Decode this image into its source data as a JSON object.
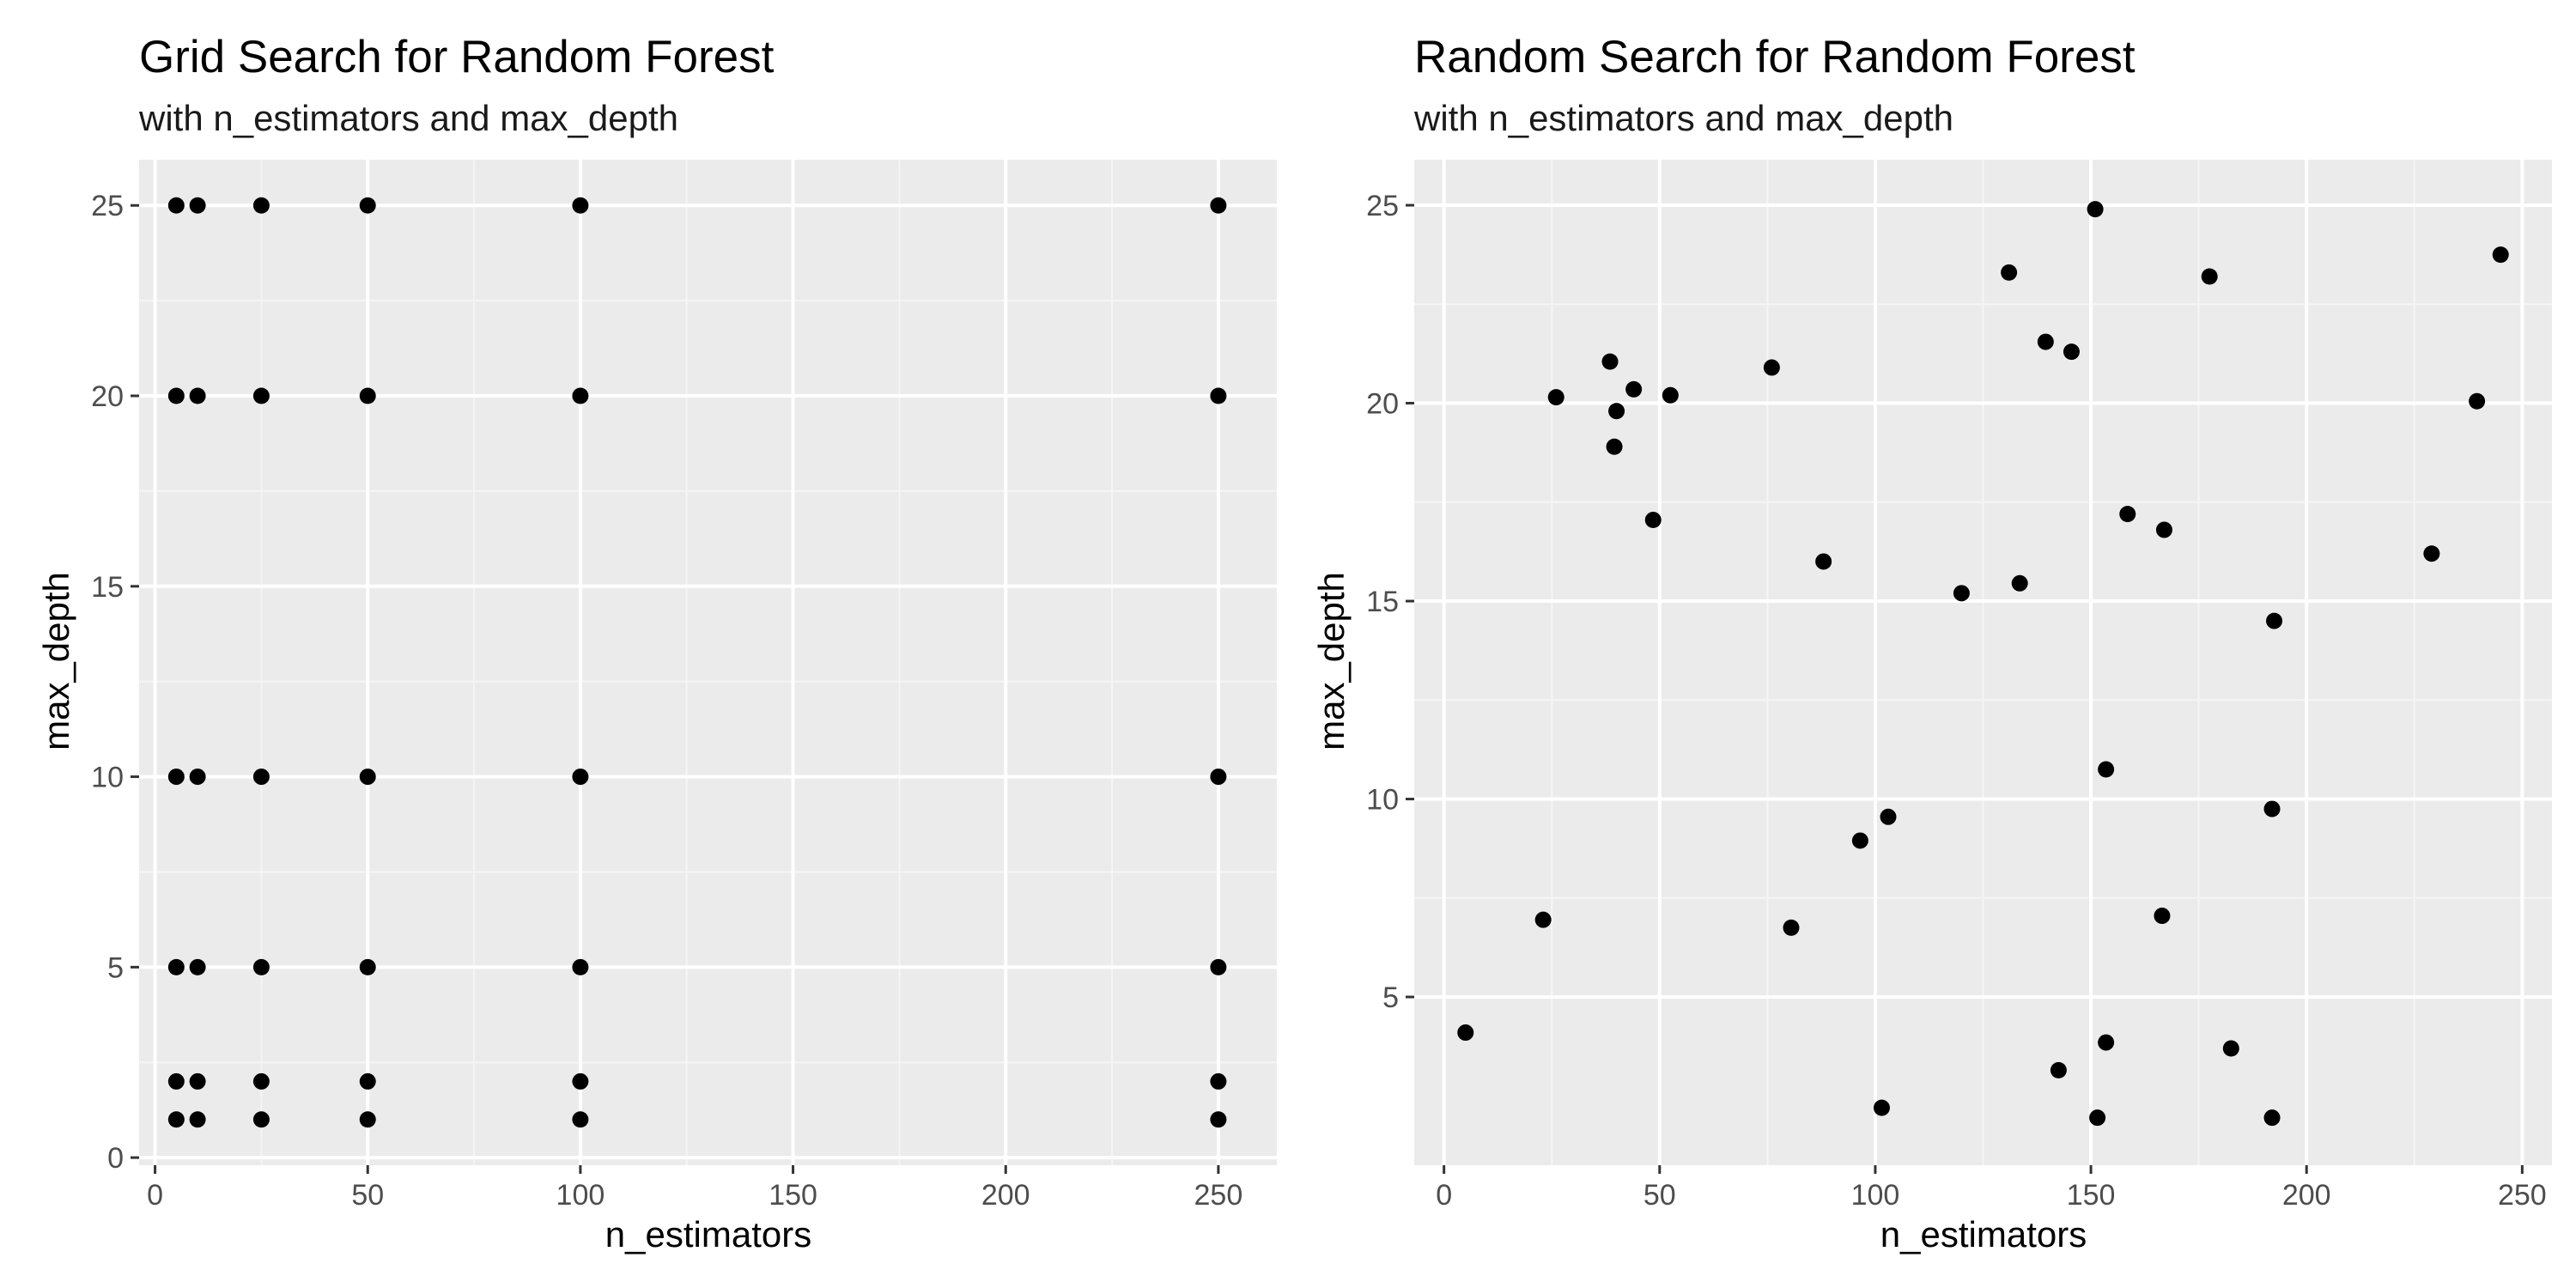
{
  "chart_data": [
    {
      "type": "scatter",
      "title": "Grid Search for Random Forest",
      "subtitle": "with n_estimators and max_depth",
      "xlabel": "n_estimators",
      "ylabel": "max_depth",
      "xlim": [
        -3.75,
        263.75
      ],
      "ylim": [
        -0.2,
        26.2
      ],
      "xticks": [
        0,
        50,
        100,
        150,
        200,
        250
      ],
      "yticks": [
        0,
        5,
        10,
        15,
        20,
        25
      ],
      "xtick_labels": [
        "0",
        "50",
        "100",
        "150",
        "200",
        "250"
      ],
      "ytick_labels": [
        "0",
        "5",
        "10",
        "15",
        "20",
        "25"
      ],
      "grid": true,
      "series": [
        {
          "x": [
            5,
            10,
            25,
            50,
            100,
            250,
            5,
            10,
            25,
            50,
            100,
            250,
            5,
            10,
            25,
            50,
            100,
            250,
            5,
            10,
            25,
            50,
            100,
            250,
            5,
            10,
            25,
            50,
            100,
            250,
            5,
            10,
            25,
            50,
            100,
            250
          ],
          "y": [
            1,
            1,
            1,
            1,
            1,
            1,
            2,
            2,
            2,
            2,
            2,
            2,
            5,
            5,
            5,
            5,
            5,
            5,
            10,
            10,
            10,
            10,
            10,
            10,
            20,
            20,
            20,
            20,
            20,
            20,
            25,
            25,
            25,
            25,
            25,
            25
          ]
        }
      ]
    },
    {
      "type": "scatter",
      "title": "Random Search for Random Forest",
      "subtitle": "with n_estimators and max_depth",
      "xlabel": "n_estimators",
      "ylabel": "max_depth",
      "xlim": [
        -6.9,
        256.9
      ],
      "ylim": [
        0.75,
        26.15
      ],
      "xticks": [
        0,
        50,
        100,
        150,
        200,
        250
      ],
      "yticks": [
        5,
        10,
        15,
        20,
        25
      ],
      "xtick_labels": [
        "0",
        "50",
        "100",
        "150",
        "200",
        "250"
      ],
      "ytick_labels": [
        "5",
        "10",
        "15",
        "20",
        "25"
      ],
      "grid": true,
      "series": [
        {
          "x": [
            5,
            23,
            26,
            38.5,
            39.5,
            40,
            44,
            48.5,
            52.5,
            76,
            80.5,
            88,
            96.5,
            101.5,
            103,
            120,
            131,
            133.5,
            139.5,
            142.5,
            145.5,
            151,
            151.5,
            153.5,
            153.5,
            158.5,
            166.5,
            167,
            177.5,
            182.5,
            192,
            192,
            192.5,
            229,
            239.5,
            245
          ],
          "y": [
            4.1,
            6.95,
            20.15,
            21.05,
            18.9,
            19.8,
            20.35,
            17.05,
            20.2,
            20.9,
            6.75,
            16,
            8.95,
            2.2,
            9.55,
            15.2,
            23.3,
            15.45,
            21.55,
            3.15,
            21.3,
            24.9,
            1.95,
            10.75,
            3.85,
            17.2,
            7.05,
            16.8,
            23.2,
            3.7,
            9.75,
            1.95,
            14.5,
            16.2,
            20.05,
            23.75
          ]
        }
      ]
    }
  ]
}
